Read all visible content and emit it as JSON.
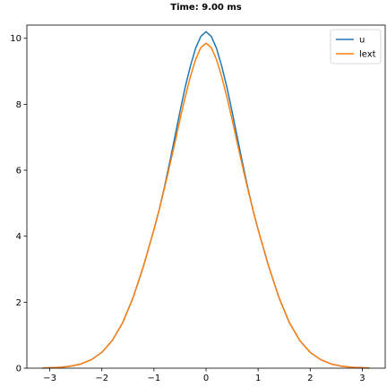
{
  "chart_data": {
    "type": "line",
    "title": "Time: 9.00 ms",
    "xlabel": "",
    "ylabel": "",
    "xlim": [
      -3.44,
      3.44
    ],
    "ylim": [
      0,
      10.4
    ],
    "x_ticks": [
      -3,
      -2,
      -1,
      0,
      1,
      2,
      3
    ],
    "x_tick_labels": [
      "−3",
      "−2",
      "−1",
      "0",
      "1",
      "2",
      "3"
    ],
    "y_ticks": [
      0,
      2,
      4,
      6,
      8,
      10
    ],
    "y_tick_labels": [
      "0",
      "2",
      "4",
      "6",
      "8",
      "10"
    ],
    "grid": false,
    "legend_position": "top-right",
    "series": [
      {
        "name": "u",
        "color": "#1f77b4",
        "x": [
          -3.14,
          -3.0,
          -2.8,
          -2.6,
          -2.4,
          -2.2,
          -2.0,
          -1.8,
          -1.6,
          -1.4,
          -1.2,
          -1.0,
          -0.9,
          -0.8,
          -0.7,
          -0.6,
          -0.5,
          -0.4,
          -0.3,
          -0.2,
          -0.1,
          0.0,
          0.1,
          0.2,
          0.3,
          0.4,
          0.5,
          0.6,
          0.7,
          0.8,
          0.9,
          1.0,
          1.2,
          1.4,
          1.6,
          1.8,
          2.0,
          2.2,
          2.4,
          2.6,
          2.8,
          3.0,
          3.14
        ],
        "y": [
          0.005,
          0.012,
          0.028,
          0.062,
          0.13,
          0.26,
          0.48,
          0.84,
          1.38,
          2.14,
          3.1,
          4.2,
          4.8,
          5.48,
          6.22,
          7.0,
          7.78,
          8.52,
          9.16,
          9.7,
          10.06,
          10.2,
          10.06,
          9.7,
          9.16,
          8.52,
          7.78,
          7.0,
          6.22,
          5.48,
          4.8,
          4.2,
          3.1,
          2.14,
          1.38,
          0.84,
          0.48,
          0.26,
          0.13,
          0.062,
          0.028,
          0.012,
          0.005
        ]
      },
      {
        "name": "lext",
        "color": "#ff7f0e",
        "x": [
          -3.14,
          -3.0,
          -2.8,
          -2.6,
          -2.4,
          -2.2,
          -2.0,
          -1.8,
          -1.6,
          -1.4,
          -1.2,
          -1.0,
          -0.9,
          -0.8,
          -0.7,
          -0.6,
          -0.5,
          -0.4,
          -0.3,
          -0.2,
          -0.1,
          0.0,
          0.1,
          0.2,
          0.3,
          0.4,
          0.5,
          0.6,
          0.7,
          0.8,
          0.9,
          1.0,
          1.2,
          1.4,
          1.6,
          1.8,
          2.0,
          2.2,
          2.4,
          2.6,
          2.8,
          3.0,
          3.14
        ],
        "y": [
          0.005,
          0.012,
          0.028,
          0.062,
          0.13,
          0.26,
          0.48,
          0.84,
          1.38,
          2.14,
          3.1,
          4.2,
          4.8,
          5.44,
          6.12,
          6.82,
          7.54,
          8.22,
          8.84,
          9.36,
          9.72,
          9.85,
          9.72,
          9.36,
          8.84,
          8.22,
          7.54,
          6.82,
          6.12,
          5.44,
          4.8,
          4.2,
          3.1,
          2.14,
          1.38,
          0.84,
          0.48,
          0.26,
          0.13,
          0.062,
          0.028,
          0.012,
          0.005
        ]
      }
    ]
  }
}
